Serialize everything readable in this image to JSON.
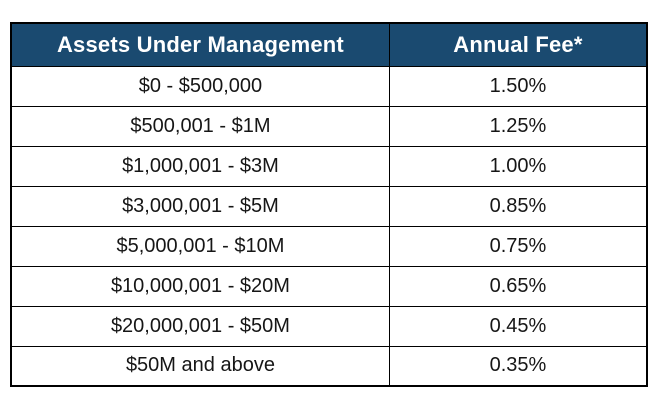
{
  "chart_data": {
    "type": "table",
    "columns": [
      "Assets Under Management",
      "Annual Fee*"
    ],
    "rows": [
      [
        "$0 - $500,000",
        "1.50%"
      ],
      [
        "$500,001 - $1M",
        "1.25%"
      ],
      [
        "$1,000,001 - $3M",
        "1.00%"
      ],
      [
        "$3,000,001 - $5M",
        "0.85%"
      ],
      [
        "$5,000,001 - $10M",
        "0.75%"
      ],
      [
        "$10,000,001 - $20M",
        "0.65%"
      ],
      [
        "$20,000,001 - $50M",
        "0.45%"
      ],
      [
        "$50M and above",
        "0.35%"
      ]
    ],
    "title": "",
    "legend_position": "none",
    "grid": "on"
  },
  "colors": {
    "header_background": "#1a4a70",
    "header_text": "#ffffff",
    "border": "#000000",
    "body_text": "#161616",
    "page_background": "#ffffff"
  }
}
